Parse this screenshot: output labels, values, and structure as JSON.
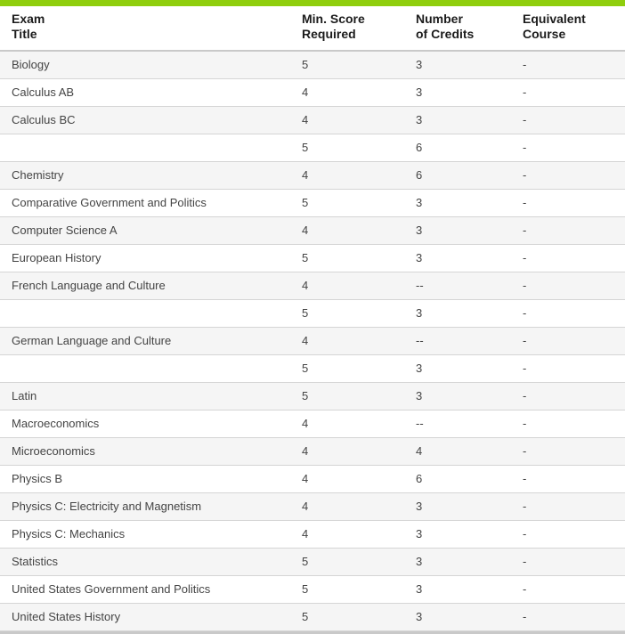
{
  "accent": {
    "top_bar_color": "#8FCE0D",
    "bottom_bar_color": "#C9C9C9",
    "row_stripe_color": "#F5F5F5",
    "row_border_color": "#D5D5D5",
    "header_border_color": "#C9C9C9"
  },
  "table": {
    "columns": [
      {
        "id": "exam_title",
        "label": "Exam\nTitle"
      },
      {
        "id": "min_score",
        "label": "Min. Score\nRequired"
      },
      {
        "id": "credits",
        "label": "Number\nof Credits"
      },
      {
        "id": "equivalent_course",
        "label": "Equivalent\nCourse"
      }
    ],
    "rows": [
      {
        "exam_title": "Biology",
        "min_score": "5",
        "credits": "3",
        "equivalent_course": "-"
      },
      {
        "exam_title": "Calculus AB",
        "min_score": "4",
        "credits": "3",
        "equivalent_course": "-"
      },
      {
        "exam_title": "Calculus BC",
        "min_score": "4",
        "credits": "3",
        "equivalent_course": "-"
      },
      {
        "exam_title": "",
        "min_score": "5",
        "credits": "6",
        "equivalent_course": "-"
      },
      {
        "exam_title": "Chemistry",
        "min_score": "4",
        "credits": "6",
        "equivalent_course": "-"
      },
      {
        "exam_title": "Comparative Government and Politics",
        "min_score": "5",
        "credits": "3",
        "equivalent_course": "-"
      },
      {
        "exam_title": "Computer Science A",
        "min_score": "4",
        "credits": "3",
        "equivalent_course": "-"
      },
      {
        "exam_title": "European History",
        "min_score": "5",
        "credits": "3",
        "equivalent_course": "-"
      },
      {
        "exam_title": "French Language and Culture",
        "min_score": "4",
        "credits": "--",
        "equivalent_course": "-"
      },
      {
        "exam_title": "",
        "min_score": "5",
        "credits": "3",
        "equivalent_course": "-"
      },
      {
        "exam_title": "German Language and Culture",
        "min_score": "4",
        "credits": "--",
        "equivalent_course": "-"
      },
      {
        "exam_title": "",
        "min_score": "5",
        "credits": "3",
        "equivalent_course": "-"
      },
      {
        "exam_title": "Latin",
        "min_score": "5",
        "credits": "3",
        "equivalent_course": "-"
      },
      {
        "exam_title": "Macroeconomics",
        "min_score": "4",
        "credits": "--",
        "equivalent_course": "-"
      },
      {
        "exam_title": "Microeconomics",
        "min_score": "4",
        "credits": "4",
        "equivalent_course": "-"
      },
      {
        "exam_title": "Physics B",
        "min_score": "4",
        "credits": "6",
        "equivalent_course": "-"
      },
      {
        "exam_title": "Physics C: Electricity and Magnetism",
        "min_score": "4",
        "credits": "3",
        "equivalent_course": "-"
      },
      {
        "exam_title": "Physics C: Mechanics",
        "min_score": "4",
        "credits": "3",
        "equivalent_course": "-"
      },
      {
        "exam_title": "Statistics",
        "min_score": "5",
        "credits": "3",
        "equivalent_course": "-"
      },
      {
        "exam_title": "United States Government and Politics",
        "min_score": "5",
        "credits": "3",
        "equivalent_course": "-"
      },
      {
        "exam_title": "United States History",
        "min_score": "5",
        "credits": "3",
        "equivalent_course": "-"
      }
    ]
  }
}
